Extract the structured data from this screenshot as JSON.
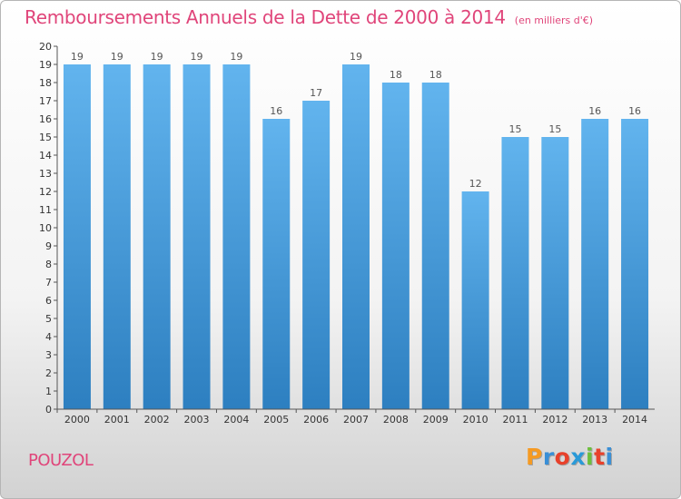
{
  "title": "Remboursements Annuels de la Dette de 2000 à 2014",
  "unit_note": "(en milliers d'€)",
  "place": "POUZOL",
  "logo": {
    "letters": [
      "P",
      "r",
      "o",
      "x",
      "i",
      "t",
      "i"
    ],
    "colors": [
      "#f59a23",
      "#3a8fd6",
      "#e8412b",
      "#2a9ad8",
      "#6cbf3c",
      "#e8412b",
      "#3a8fd6"
    ]
  },
  "colors": {
    "bar_top": "#62b4ee",
    "bar_bottom": "#2d7fc0",
    "text": "#e0457a"
  },
  "chart_data": {
    "type": "bar",
    "categories": [
      "2000",
      "2001",
      "2002",
      "2003",
      "2004",
      "2005",
      "2006",
      "2007",
      "2008",
      "2009",
      "2010",
      "2011",
      "2012",
      "2013",
      "2014"
    ],
    "values": [
      19,
      19,
      19,
      19,
      19,
      16,
      17,
      19,
      18,
      18,
      12,
      15,
      15,
      16,
      16
    ],
    "yticks": [
      "0",
      "1",
      "2",
      "3",
      "4",
      "5",
      "6",
      "7",
      "8",
      "9",
      "10",
      "11",
      "12",
      "13",
      "14",
      "15",
      "16",
      "17",
      "18",
      "19",
      "20"
    ],
    "ylim": [
      0,
      20
    ],
    "grid": false
  }
}
